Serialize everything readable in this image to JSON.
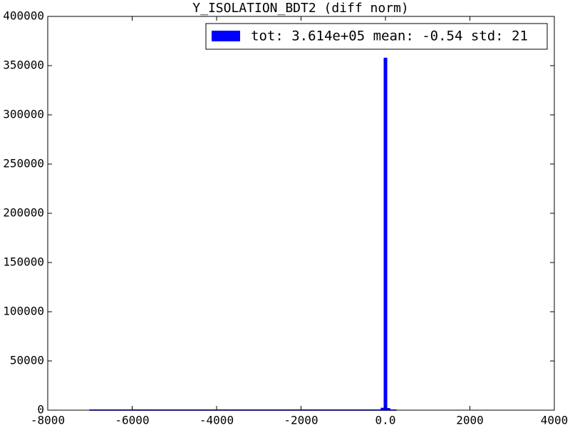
{
  "chart_data": {
    "type": "histogram",
    "title": "Y_ISOLATION_BDT2 (diff norm)",
    "bins": [
      -7000,
      -100,
      -30,
      30,
      100,
      250
    ],
    "series": [
      {
        "name": "tot: 3.614e+05 mean: -0.54 std: 21",
        "color": "#0000ff",
        "values": [
          200,
          1900,
          357500,
          1600,
          200
        ]
      }
    ],
    "xlim": [
      -8000,
      4000
    ],
    "xticks": [
      -8000,
      -6000,
      -4000,
      -2000,
      {
        "value": 0,
        "label": "0.0"
      },
      2000,
      4000
    ],
    "ylim": [
      0,
      400000
    ],
    "yticks": [
      0,
      50000,
      100000,
      150000,
      200000,
      250000,
      300000,
      350000,
      400000
    ],
    "grid": false,
    "legend": "upper right"
  }
}
